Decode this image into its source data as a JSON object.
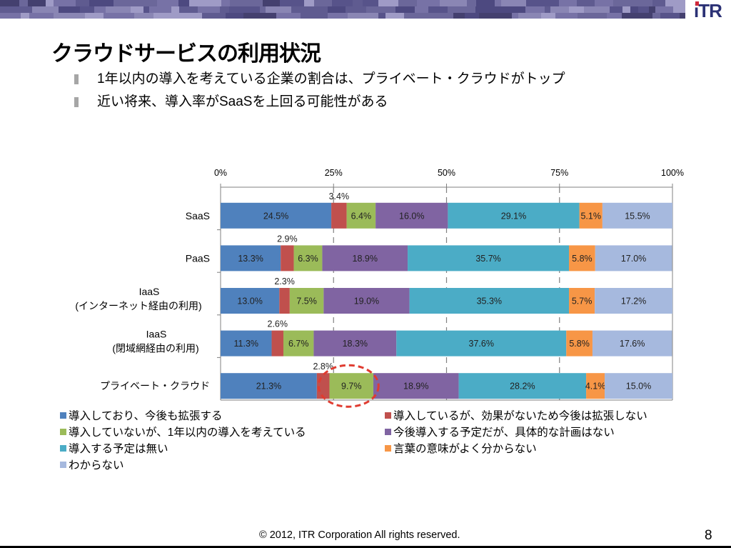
{
  "header": {
    "logo_text": "iTR",
    "title": "クラウドサービスの利用状況",
    "bullets": [
      "1年以内の導入を考えている企業の割合は、プライベート・クラウドがトップ",
      "近い将来、導入率がSaaSを上回る可能性がある"
    ]
  },
  "chart_data": {
    "type": "bar",
    "orientation": "horizontal-stacked-100",
    "title": "",
    "xlabel": "",
    "ylabel": "",
    "xlim": [
      0,
      100
    ],
    "x_ticks": [
      "0%",
      "25%",
      "50%",
      "75%",
      "100%"
    ],
    "grid": "dashed vertical at 25% intervals",
    "legend_position": "bottom",
    "categories": [
      "SaaS",
      "PaaS",
      "IaaS\n(インターネット経由の利用)",
      "IaaS\n(閉域網経由の利用)",
      "プライベート・クラウド"
    ],
    "series": [
      {
        "name": "導入しており、今後も拡張する",
        "color": "#4f81bd",
        "values": [
          24.5,
          13.3,
          13.0,
          11.3,
          21.3
        ],
        "labels": [
          "24.5%",
          "13.3%",
          "13.0%",
          "11.3%",
          "21.3%"
        ]
      },
      {
        "name": "導入しているが、効果がないため今後は拡張しない",
        "color": "#c0504d",
        "values": [
          3.4,
          2.9,
          2.3,
          2.6,
          2.8
        ],
        "labels": [
          "3.4%",
          "2.9%",
          "2.3%",
          "2.6%",
          "2.8%"
        ]
      },
      {
        "name": "導入していないが、1年以内の導入を考えている",
        "color": "#9bbb59",
        "values": [
          6.4,
          6.3,
          7.5,
          6.7,
          9.7
        ],
        "labels": [
          "6.4%",
          "6.3%",
          "7.5%",
          "6.7%",
          "9.7%"
        ]
      },
      {
        "name": "今後導入する予定だが、具体的な計画はない",
        "color": "#8064a2",
        "values": [
          16.0,
          18.9,
          19.0,
          18.3,
          18.9
        ],
        "labels": [
          "16.0%",
          "18.9%",
          "19.0%",
          "18.3%",
          "18.9%"
        ]
      },
      {
        "name": "導入する予定は無い",
        "color": "#4bacc6",
        "values": [
          29.1,
          35.7,
          35.3,
          37.6,
          28.2
        ],
        "labels": [
          "29.1%",
          "35.7%",
          "35.3%",
          "37.6%",
          "28.2%"
        ]
      },
      {
        "name": "言葉の意味がよく分からない",
        "color": "#f79646",
        "values": [
          5.1,
          5.8,
          5.7,
          5.8,
          4.1
        ],
        "labels": [
          "5.1%",
          "5.8%",
          "5.7%",
          "5.8%",
          "4.1%"
        ]
      },
      {
        "name": "わからない",
        "color": "#a6b9de",
        "values": [
          15.5,
          17.0,
          17.2,
          17.6,
          15.0
        ],
        "labels": [
          "15.5%",
          "17.0%",
          "17.2%",
          "17.6%",
          "15.0%"
        ]
      }
    ],
    "annotations": [
      {
        "type": "dashed-ellipse",
        "color": "#e03c31",
        "target": "プライベート・クラウド / 導入していないが、1年以内の導入を考えている (9.7%)"
      }
    ]
  },
  "footer": {
    "copyright": "© 2012, ITR Corporation  All rights reserved.",
    "page_number": "8"
  }
}
